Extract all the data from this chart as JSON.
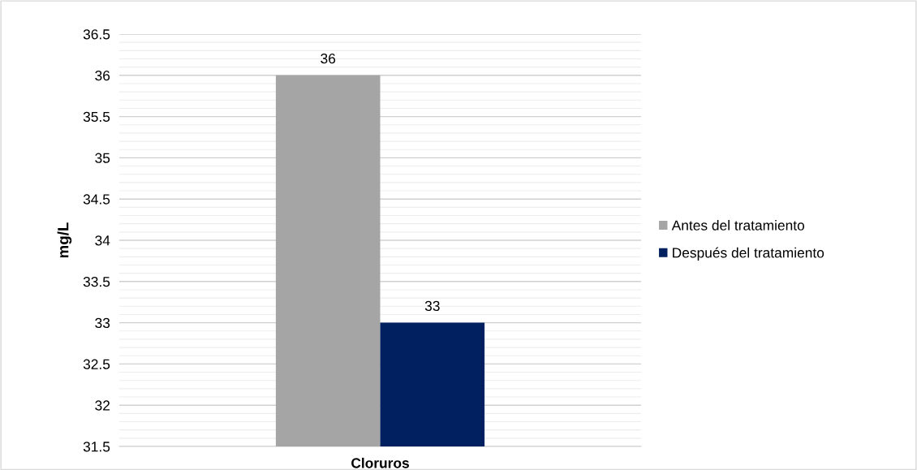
{
  "chart_data": {
    "type": "bar",
    "categories": [
      "Cloruros"
    ],
    "ylabel": "mg/L",
    "series": [
      {
        "name": "Antes del tratamiento",
        "color": "#a5a5a5",
        "values": [
          36
        ]
      },
      {
        "name": "Después del tratamiento",
        "color": "#002060",
        "values": [
          33
        ]
      }
    ],
    "ylim": [
      31.5,
      36.5
    ],
    "yticks": [
      31.5,
      32,
      32.5,
      33,
      33.5,
      34,
      34.5,
      35,
      35.5,
      36,
      36.5
    ],
    "grid": "y",
    "legend": "right",
    "data_labels": true
  }
}
